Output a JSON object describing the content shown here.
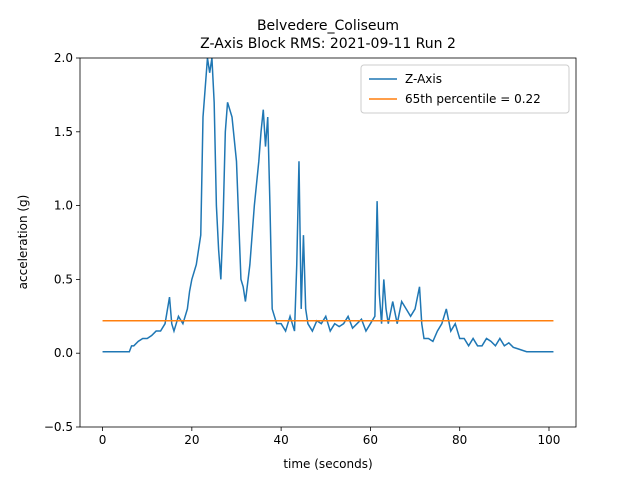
{
  "chart_data": {
    "type": "line",
    "title": "Belvedere_Coliseum",
    "subtitle": "Z-Axis Block RMS: 2021-09-11 Run 2",
    "x_label": "time (seconds)",
    "y_label": "acceleration (g)",
    "xlim": [
      -5.05,
      106.05
    ],
    "ylim": [
      -0.5,
      2.0
    ],
    "xticks": [
      0,
      20,
      40,
      60,
      80,
      100
    ],
    "yticks": [
      {
        "value": -0.5,
        "label": "−0.5"
      },
      {
        "value": 0.0,
        "label": "0.0"
      },
      0.5,
      {
        "value": 1.0,
        "label": "1.0"
      },
      1.5,
      {
        "value": 2.0,
        "label": "2.0"
      }
    ],
    "legend": "upper right",
    "series": [
      {
        "name": "Z-Axis",
        "color": "#1f77b4",
        "x": [
          0,
          1,
          2,
          3,
          4,
          5,
          6,
          6.5,
          7,
          8,
          9,
          10,
          11,
          12,
          13,
          14,
          15,
          15.5,
          16,
          17,
          18,
          19,
          19.5,
          20,
          21,
          22,
          22.5,
          23,
          23.5,
          24,
          24.5,
          25,
          25.5,
          26,
          26.5,
          27,
          27.5,
          28,
          29,
          30,
          30.5,
          31,
          31.5,
          32,
          33,
          34,
          35,
          35.5,
          36,
          36.5,
          37,
          37.5,
          38,
          39,
          40,
          41,
          42,
          43,
          43.5,
          44,
          44.5,
          45,
          45.5,
          46,
          47,
          48,
          49,
          50,
          51,
          52,
          53,
          54,
          55,
          56,
          57,
          58,
          59,
          60,
          61,
          61.5,
          62,
          62.5,
          63,
          63.5,
          64,
          65,
          66,
          67,
          68,
          69,
          70,
          71,
          71.5,
          72,
          73,
          74,
          75,
          76,
          77,
          78,
          79,
          80,
          81,
          82,
          83,
          84,
          85,
          86,
          87,
          88,
          89,
          90,
          91,
          92,
          93,
          94,
          95,
          96,
          101
        ],
        "values": [
          0.01,
          0.01,
          0.01,
          0.01,
          0.01,
          0.01,
          0.01,
          0.05,
          0.05,
          0.08,
          0.1,
          0.1,
          0.12,
          0.15,
          0.15,
          0.2,
          0.38,
          0.2,
          0.15,
          0.25,
          0.2,
          0.3,
          0.42,
          0.5,
          0.6,
          0.8,
          1.6,
          1.8,
          2.0,
          1.9,
          2.0,
          1.7,
          1.0,
          0.7,
          0.5,
          0.9,
          1.5,
          1.7,
          1.6,
          1.3,
          0.9,
          0.5,
          0.45,
          0.35,
          0.6,
          1.0,
          1.3,
          1.5,
          1.65,
          1.4,
          1.6,
          1.0,
          0.3,
          0.2,
          0.2,
          0.15,
          0.25,
          0.15,
          0.6,
          1.3,
          0.3,
          0.8,
          0.3,
          0.2,
          0.15,
          0.22,
          0.2,
          0.25,
          0.15,
          0.2,
          0.18,
          0.2,
          0.25,
          0.17,
          0.2,
          0.23,
          0.15,
          0.2,
          0.25,
          1.03,
          0.4,
          0.2,
          0.5,
          0.3,
          0.2,
          0.35,
          0.2,
          0.35,
          0.3,
          0.25,
          0.3,
          0.45,
          0.2,
          0.1,
          0.1,
          0.08,
          0.15,
          0.2,
          0.3,
          0.15,
          0.2,
          0.1,
          0.1,
          0.05,
          0.1,
          0.05,
          0.05,
          0.1,
          0.08,
          0.05,
          0.1,
          0.05,
          0.07,
          0.04,
          0.03,
          0.02,
          0.01,
          0.01,
          0.01
        ]
      },
      {
        "name": "65th percentile = 0.22",
        "color": "#ff7f0e",
        "x": [
          0,
          101
        ],
        "values": [
          0.22,
          0.22
        ]
      }
    ]
  }
}
